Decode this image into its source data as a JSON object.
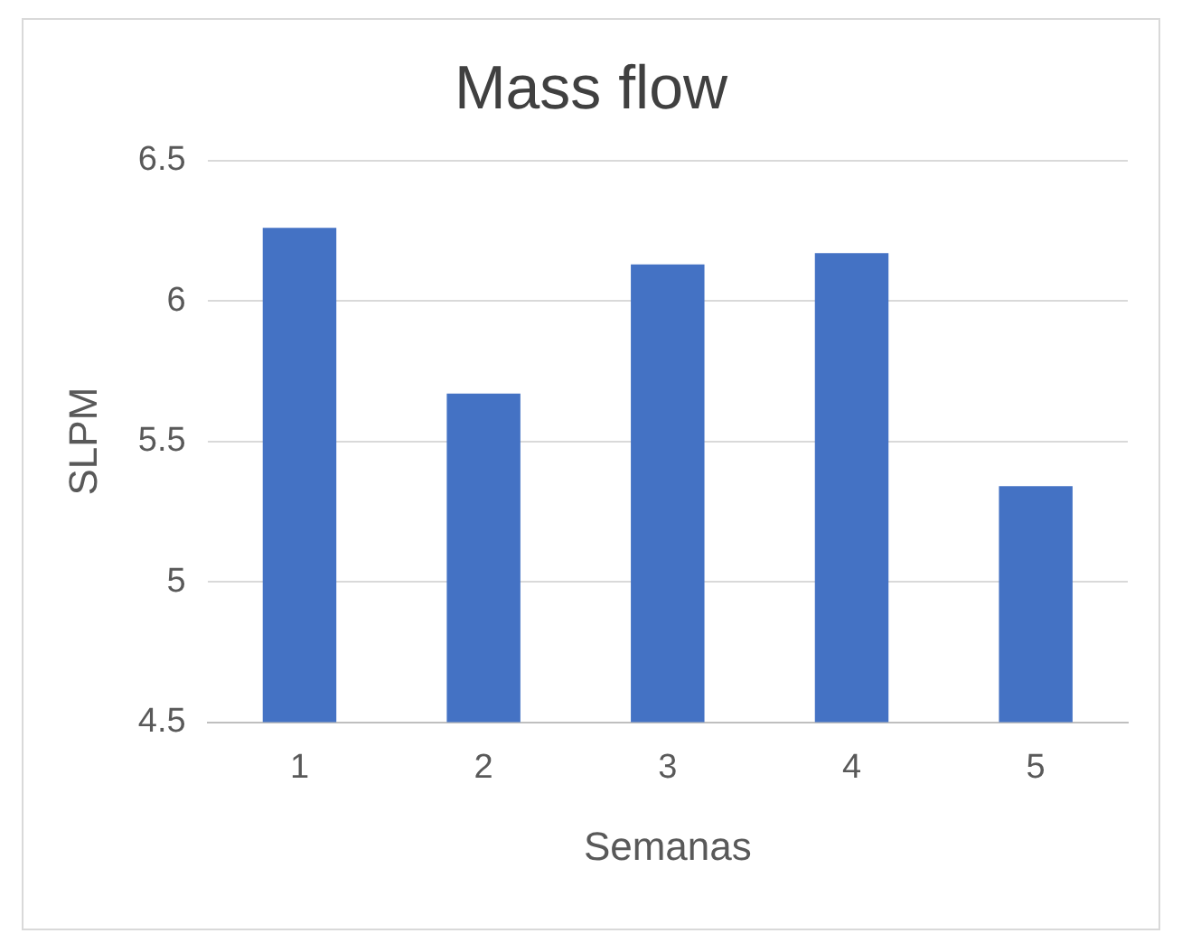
{
  "chart_data": {
    "type": "bar",
    "title": "Mass flow",
    "xlabel": "Semanas",
    "ylabel": "SLPM",
    "categories": [
      "1",
      "2",
      "3",
      "4",
      "5"
    ],
    "values": [
      6.26,
      5.67,
      6.13,
      6.17,
      5.34
    ],
    "color": "#4472c4",
    "ylim": [
      4.5,
      6.5
    ],
    "yticks": [
      4.5,
      5,
      5.5,
      6,
      6.5
    ],
    "grid": "y",
    "legend": false
  }
}
